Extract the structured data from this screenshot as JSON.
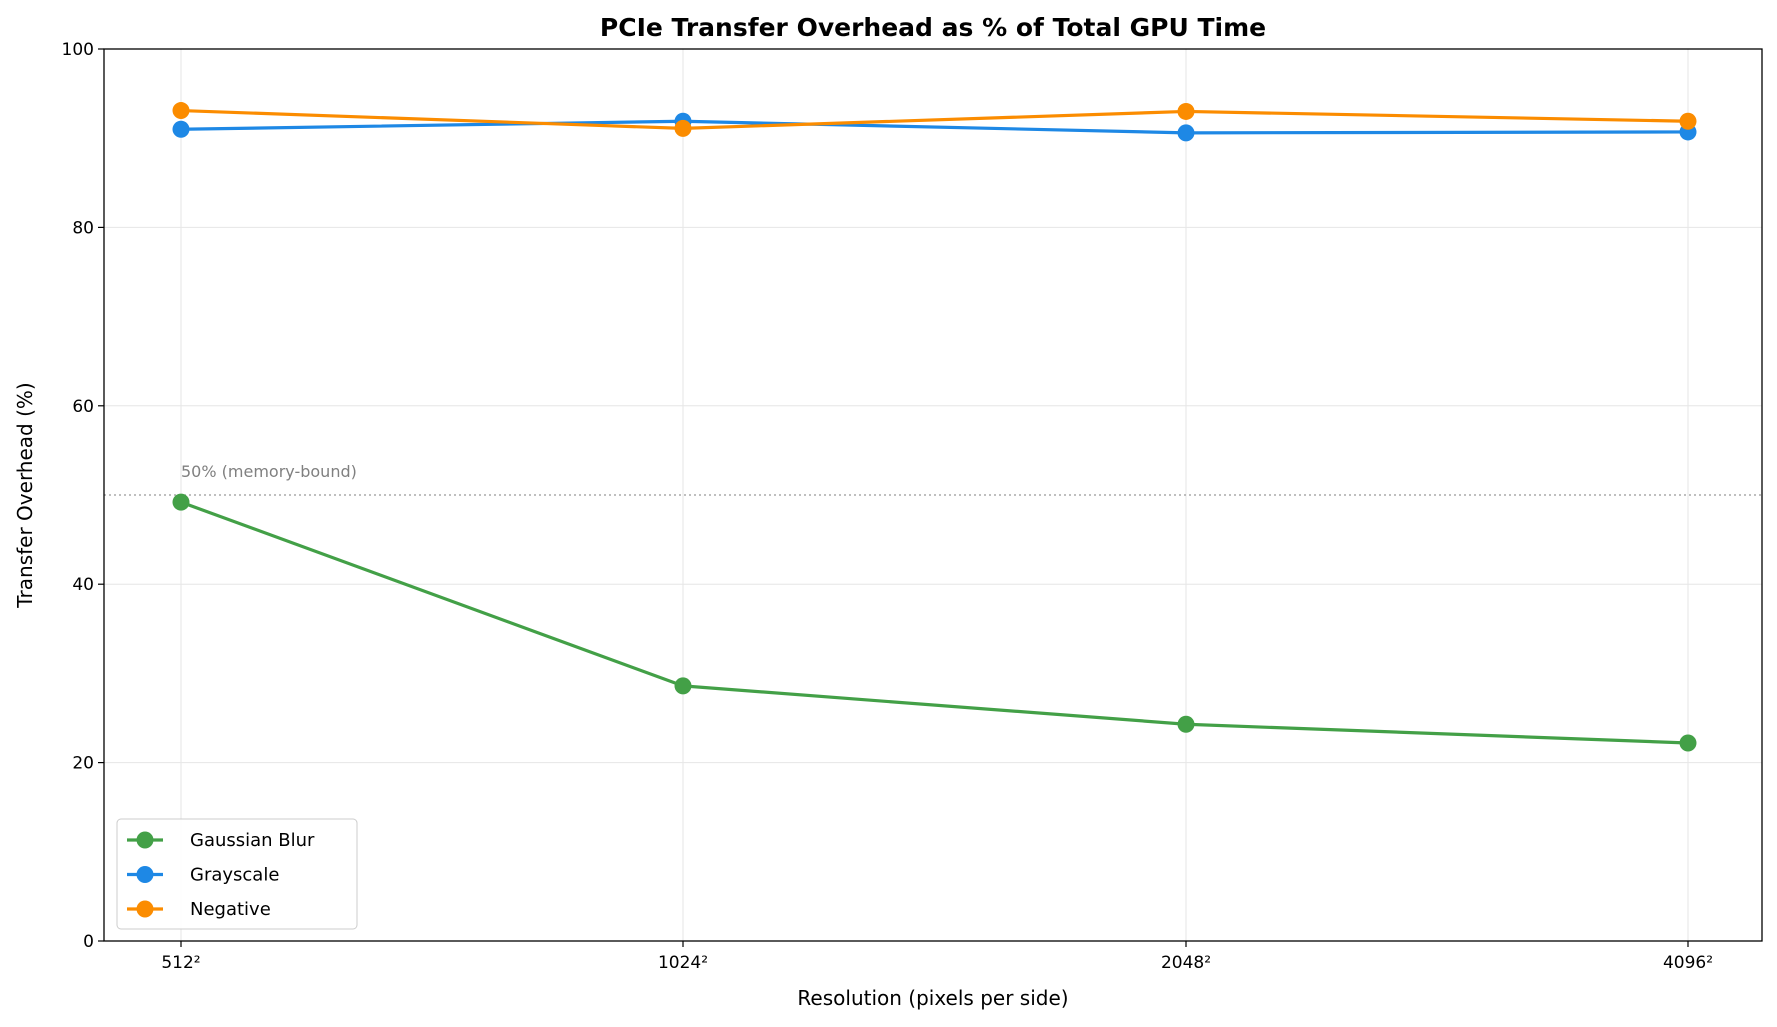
{
  "chart_data": {
    "type": "line",
    "title": "PCIe Transfer Overhead as % of Total GPU Time",
    "xlabel": "Resolution (pixels per side)",
    "ylabel": "Transfer Overhead (%)",
    "categories": [
      "512²",
      "1024²",
      "2048²",
      "4096²"
    ],
    "ylim": [
      0,
      100
    ],
    "yticks": [
      "0",
      "20",
      "40",
      "60",
      "80",
      "100"
    ],
    "ytick_values": [
      0,
      20,
      40,
      60,
      80,
      100
    ],
    "grid": true,
    "legend_position": "lower-left",
    "series": [
      {
        "name": "Gaussian Blur",
        "color": "#43a047",
        "values": [
          49.2,
          28.6,
          24.3,
          22.2
        ]
      },
      {
        "name": "Grayscale",
        "color": "#1e88e5",
        "values": [
          91.0,
          91.9,
          90.6,
          90.7
        ]
      },
      {
        "name": "Negative",
        "color": "#fb8c00",
        "values": [
          93.1,
          91.1,
          93.0,
          91.9
        ]
      }
    ],
    "reference_line": {
      "value": 50,
      "label": "50% (memory-bound)",
      "color": "#999999"
    }
  }
}
